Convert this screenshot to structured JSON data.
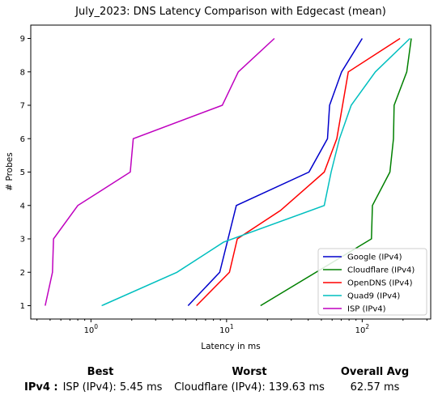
{
  "chart_data": {
    "type": "line",
    "title": "July_2023: DNS Latency Comparison with Edgecast (mean)",
    "xlabel": "Latency in ms",
    "ylabel": "# Probes",
    "xscale": "log",
    "xlim": [
      0.36,
      320
    ],
    "ylim": [
      0.6,
      9.4
    ],
    "xticks": [
      {
        "value": 1,
        "label": "10^0"
      },
      {
        "value": 10,
        "label": "10^1"
      },
      {
        "value": 100,
        "label": "10^2"
      }
    ],
    "yticks": [
      1,
      2,
      3,
      4,
      5,
      6,
      7,
      8,
      9
    ],
    "grid": false,
    "legend_position": "bottom-right",
    "series": [
      {
        "name": "Google (IPv4)",
        "color": "#0000cc",
        "x": [
          5.2,
          8.9,
          11.8,
          40.5,
          55.5,
          57.5,
          70.5,
          100
        ],
        "y": [
          1,
          2,
          4,
          5,
          6,
          7,
          8,
          9
        ]
      },
      {
        "name": "Cloudflare (IPv4)",
        "color": "#008000",
        "x": [
          17.8,
          117,
          119,
          160,
          170,
          172,
          213,
          230
        ],
        "y": [
          1,
          3,
          4,
          5,
          6,
          7,
          8,
          9
        ]
      },
      {
        "name": "OpenDNS (IPv4)",
        "color": "#ff0000",
        "x": [
          6,
          10.5,
          12,
          25,
          52.5,
          65,
          79,
          190
        ],
        "y": [
          1,
          2,
          3,
          3.85,
          5,
          6,
          8,
          9
        ]
      },
      {
        "name": "Quad9 (IPv4)",
        "color": "#00bfbf",
        "x": [
          1.2,
          4.3,
          9.5,
          52.5,
          59,
          68,
          83,
          125,
          225
        ],
        "y": [
          1,
          2,
          2.9,
          4,
          5,
          6,
          7,
          8,
          9
        ]
      },
      {
        "name": "ISP (IPv4)",
        "color": "#bf00bf",
        "x": [
          0.46,
          0.52,
          0.53,
          0.8,
          1.95,
          2.05,
          9.3,
          12.2,
          22.5
        ],
        "y": [
          1,
          2,
          3,
          4,
          5,
          6,
          7,
          8,
          9
        ]
      }
    ]
  },
  "summary": {
    "headers": {
      "best": "Best",
      "worst": "Worst",
      "avg": "Overall Avg"
    },
    "row_label": "IPv4 :",
    "best": "ISP (IPv4): 5.45 ms",
    "worst": "Cloudflare (IPv4): 139.63 ms",
    "avg": "62.57 ms"
  }
}
